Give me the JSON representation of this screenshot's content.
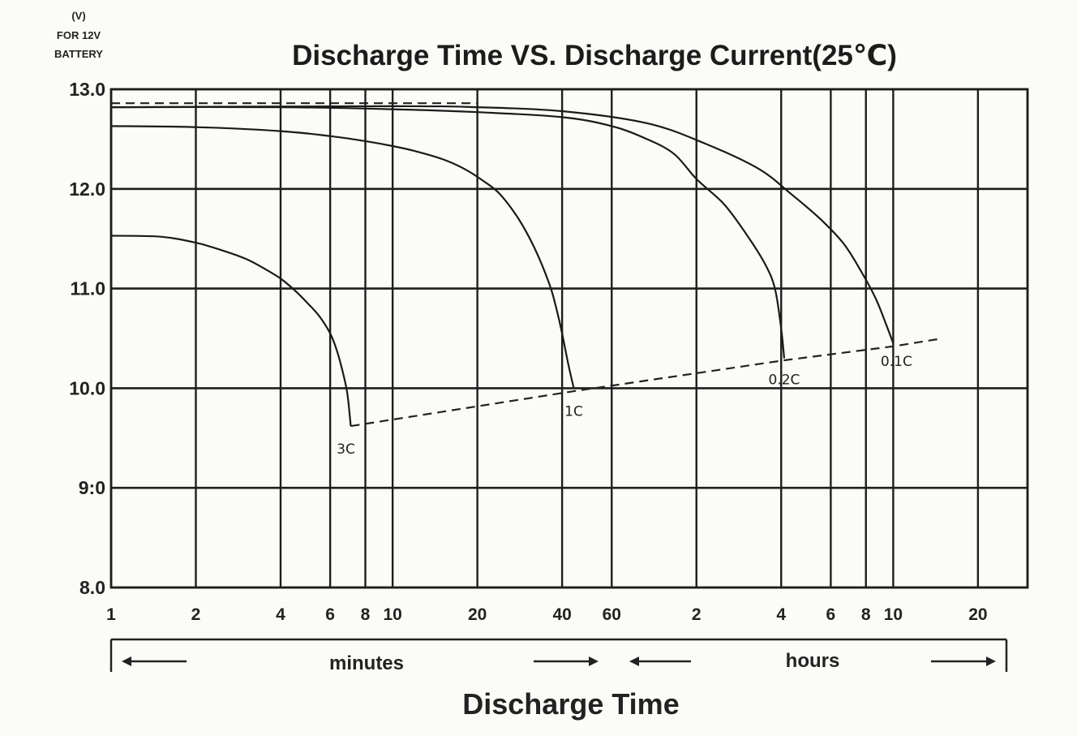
{
  "chart_data": {
    "type": "line",
    "title": "Discharge Time VS. Discharge Current(25℃)",
    "ylabel_lines": [
      "(V)",
      "FOR 12V",
      "BATTERY"
    ],
    "xlabel": "Discharge Time",
    "x_scale": "log",
    "y_ticks": [
      "13.0",
      "12.0",
      "11.0",
      "10.0",
      "9:0",
      "8.0"
    ],
    "ylim": [
      8.0,
      13.0
    ],
    "x_ticks_minutes": [
      "1",
      "2",
      "4",
      "6",
      "8",
      "10",
      "20",
      "40",
      "60"
    ],
    "x_ticks_hours": [
      "2",
      "4",
      "6",
      "8",
      "10",
      "20"
    ],
    "x_grid_minutes": [
      1,
      2,
      4,
      6,
      8,
      10,
      20,
      40,
      60,
      120,
      240,
      360,
      480,
      600,
      1200,
      1800
    ],
    "unit_labels": {
      "minutes": "minutes",
      "hours": "hours"
    },
    "series": [
      {
        "name": "3C",
        "points": [
          [
            1,
            11.53
          ],
          [
            1.5,
            11.52
          ],
          [
            2,
            11.46
          ],
          [
            2.5,
            11.38
          ],
          [
            3,
            11.3
          ],
          [
            3.5,
            11.2
          ],
          [
            4,
            11.1
          ],
          [
            4.5,
            10.98
          ],
          [
            5,
            10.85
          ],
          [
            5.5,
            10.72
          ],
          [
            6,
            10.55
          ],
          [
            6.3,
            10.4
          ],
          [
            6.6,
            10.2
          ],
          [
            6.9,
            9.95
          ],
          [
            7.1,
            9.62
          ]
        ]
      },
      {
        "name": "1C",
        "points": [
          [
            1,
            12.63
          ],
          [
            2,
            12.62
          ],
          [
            4,
            12.58
          ],
          [
            6,
            12.53
          ],
          [
            8,
            12.48
          ],
          [
            10,
            12.43
          ],
          [
            12,
            12.38
          ],
          [
            15,
            12.3
          ],
          [
            18,
            12.2
          ],
          [
            21,
            12.08
          ],
          [
            24,
            11.95
          ],
          [
            28,
            11.7
          ],
          [
            32,
            11.4
          ],
          [
            36,
            11.05
          ],
          [
            38,
            10.82
          ],
          [
            40,
            10.55
          ],
          [
            42,
            10.25
          ],
          [
            44,
            10.0
          ]
        ]
      },
      {
        "name": "0.2C",
        "points": [
          [
            1,
            12.82
          ],
          [
            4,
            12.82
          ],
          [
            10,
            12.8
          ],
          [
            20,
            12.77
          ],
          [
            40,
            12.72
          ],
          [
            60,
            12.63
          ],
          [
            80,
            12.5
          ],
          [
            100,
            12.35
          ],
          [
            120,
            12.1
          ],
          [
            150,
            11.85
          ],
          [
            180,
            11.55
          ],
          [
            210,
            11.25
          ],
          [
            228,
            11.0
          ],
          [
            240,
            10.6
          ],
          [
            246,
            10.3
          ]
        ]
      },
      {
        "name": "0.1C",
        "points": [
          [
            1,
            12.82
          ],
          [
            10,
            12.83
          ],
          [
            20,
            12.82
          ],
          [
            40,
            12.78
          ],
          [
            80,
            12.66
          ],
          [
            130,
            12.45
          ],
          [
            200,
            12.2
          ],
          [
            260,
            11.95
          ],
          [
            330,
            11.7
          ],
          [
            400,
            11.45
          ],
          [
            460,
            11.18
          ],
          [
            520,
            10.9
          ],
          [
            570,
            10.62
          ],
          [
            600,
            10.45
          ]
        ]
      }
    ],
    "dashed_lines": [
      {
        "name": "initial-voltage",
        "points": [
          [
            1,
            12.86
          ],
          [
            20,
            12.86
          ]
        ]
      },
      {
        "name": "final-voltage",
        "points": [
          [
            7.1,
            9.62
          ],
          [
            44,
            9.97
          ],
          [
            246,
            10.28
          ],
          [
            600,
            10.42
          ],
          [
            900,
            10.5
          ]
        ]
      }
    ]
  }
}
